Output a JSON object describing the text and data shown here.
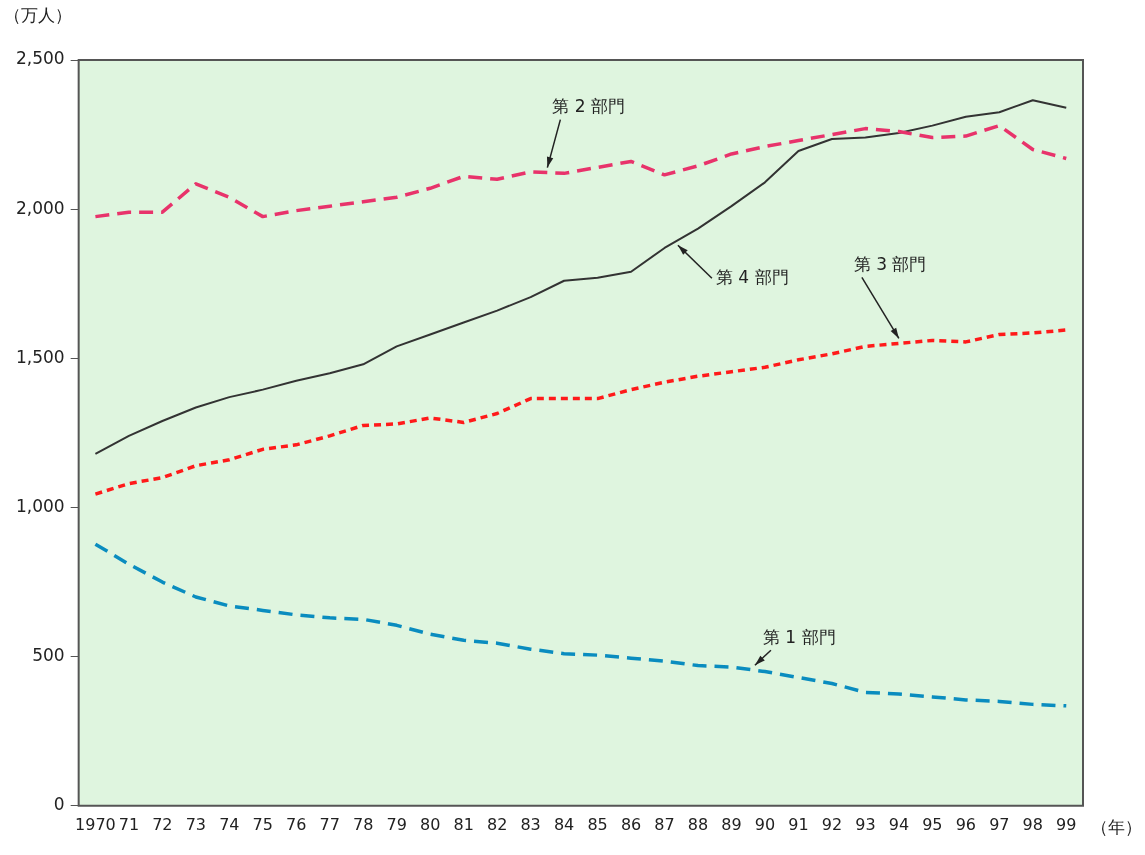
{
  "chart_data": {
    "type": "line",
    "ylabel": "（万人）",
    "xlabel": "（年）",
    "categories": [
      "1970",
      "71",
      "72",
      "73",
      "74",
      "75",
      "76",
      "77",
      "78",
      "79",
      "80",
      "81",
      "82",
      "83",
      "84",
      "85",
      "86",
      "87",
      "88",
      "89",
      "90",
      "91",
      "92",
      "93",
      "94",
      "95",
      "96",
      "97",
      "98",
      "99"
    ],
    "ylim": [
      0,
      2500
    ],
    "yticks": [
      0,
      {
        "value": 500,
        "label": "500"
      },
      {
        "value": 1000,
        "label": "1,000"
      },
      {
        "value": 1500,
        "label": "1,500"
      },
      {
        "value": 2000,
        "label": "2,000"
      },
      {
        "value": 2500,
        "label": "2,500"
      }
    ],
    "grid": false,
    "legend": false,
    "marker": "none",
    "series": [
      {
        "name": "第 1 部門",
        "color": "#0a8cbf",
        "line_style": "dashed",
        "values": [
          877,
          810,
          750,
          700,
          670,
          655,
          640,
          630,
          625,
          605,
          575,
          555,
          545,
          525,
          510,
          505,
          495,
          485,
          470,
          465,
          450,
          430,
          410,
          380,
          375,
          365,
          355,
          350,
          340,
          335
        ]
      },
      {
        "name": "第 2 部門",
        "color": "#e8336b",
        "line_style": "dashed",
        "values": [
          1975,
          1990,
          1990,
          2085,
          2040,
          1975,
          1995,
          2010,
          2025,
          2040,
          2070,
          2110,
          2100,
          2125,
          2120,
          2140,
          2160,
          2115,
          2145,
          2185,
          2210,
          2230,
          2250,
          2270,
          2260,
          2240,
          2245,
          2280,
          2200,
          2170
        ]
      },
      {
        "name": "第 3 部門",
        "color": "#ff1a1a",
        "line_style": "dotted",
        "values": [
          1045,
          1080,
          1100,
          1140,
          1160,
          1195,
          1210,
          1240,
          1275,
          1280,
          1300,
          1285,
          1315,
          1365,
          1365,
          1365,
          1395,
          1420,
          1440,
          1455,
          1470,
          1495,
          1515,
          1540,
          1550,
          1560,
          1555,
          1580,
          1585,
          1595
        ]
      },
      {
        "name": "第 4 部門",
        "color": "#333333",
        "line_style": "solid",
        "values": [
          1180,
          1240,
          1290,
          1335,
          1370,
          1395,
          1425,
          1450,
          1480,
          1540,
          1580,
          1620,
          1660,
          1705,
          1760,
          1770,
          1790,
          1870,
          1935,
          2010,
          2090,
          2195,
          2235,
          2240,
          2255,
          2280,
          2310,
          2325,
          2365,
          2340
        ]
      }
    ]
  }
}
